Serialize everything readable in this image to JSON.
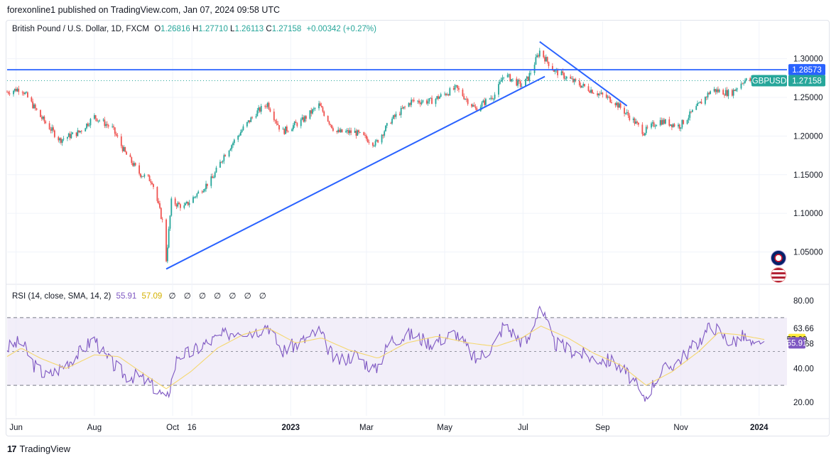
{
  "header": {
    "published_text": "forexonline1 published on TradingView.com, Jan 07, 2024 09:58 UTC"
  },
  "symbol": {
    "title": "British Pound / U.S. Dollar, 1D, FXCM",
    "open_label": "O",
    "open": "1.26816",
    "high_label": "H",
    "high": "1.27710",
    "low_label": "L",
    "low": "1.26113",
    "close_label": "C",
    "close": "1.27158",
    "change": "+0.00342 (+0.27%)"
  },
  "rsi_header": {
    "label": "RSI (14, close, SMA, 14, 2)",
    "rsi_value": "55.91",
    "sma_value": "57.09",
    "extra_icons": "∅ ∅ ∅ ∅ ∅ ∅ ∅"
  },
  "footer": {
    "brand": "TradingView",
    "logo_glyph": "17"
  },
  "colors": {
    "up": "#26a69a",
    "down": "#ef5350",
    "trendline": "#2962ff",
    "rsi": "#7e57c2",
    "rsi_sma": "#f5d76e",
    "rsi_band": "#ede7f6",
    "tag_bg": "#26a69a"
  },
  "chart_data": [
    {
      "type": "candlestick",
      "title": "British Pound / U.S. Dollar, 1D, FXCM",
      "ylim": [
        1.01,
        1.33
      ],
      "y_ticks": [
        "1.30000",
        "1.25000",
        "1.20000",
        "1.15000",
        "1.10000",
        "1.05000"
      ],
      "y_tick_values": [
        1.3,
        1.25,
        1.2,
        1.15,
        1.1,
        1.05
      ],
      "x_ticks": [
        "Jun",
        "Aug",
        "Oct",
        "16",
        "2023",
        "Mar",
        "May",
        "Jul",
        "Sep",
        "Nov",
        "2024"
      ],
      "x_tick_dates": [
        "2022-06-01",
        "2022-08-01",
        "2022-10-01",
        "2022-10-16",
        "2023-01-01",
        "2023-03-01",
        "2023-05-01",
        "2023-07-01",
        "2023-09-01",
        "2023-11-01",
        "2024-01-01"
      ],
      "date_range": [
        "2022-05-25",
        "2024-01-05"
      ],
      "close_path": [
        [
          "2022-05-25",
          1.257
        ],
        [
          "2022-06-05",
          1.262
        ],
        [
          "2022-06-20",
          1.225
        ],
        [
          "2022-07-05",
          1.195
        ],
        [
          "2022-07-20",
          1.205
        ],
        [
          "2022-08-01",
          1.225
        ],
        [
          "2022-08-15",
          1.21
        ],
        [
          "2022-08-25",
          1.178
        ],
        [
          "2022-09-05",
          1.152
        ],
        [
          "2022-09-15",
          1.142
        ],
        [
          "2022-09-23",
          1.09
        ],
        [
          "2022-09-26",
          1.04
        ],
        [
          "2022-09-30",
          1.115
        ],
        [
          "2022-10-10",
          1.108
        ],
        [
          "2022-10-20",
          1.125
        ],
        [
          "2022-11-01",
          1.145
        ],
        [
          "2022-11-10",
          1.175
        ],
        [
          "2022-11-25",
          1.21
        ],
        [
          "2022-12-05",
          1.23
        ],
        [
          "2022-12-14",
          1.242
        ],
        [
          "2022-12-25",
          1.205
        ],
        [
          "2023-01-10",
          1.22
        ],
        [
          "2023-01-23",
          1.24
        ],
        [
          "2023-02-05",
          1.205
        ],
        [
          "2023-02-20",
          1.205
        ],
        [
          "2023-03-08",
          1.19
        ],
        [
          "2023-03-20",
          1.22
        ],
        [
          "2023-04-05",
          1.245
        ],
        [
          "2023-04-20",
          1.245
        ],
        [
          "2023-05-10",
          1.262
        ],
        [
          "2023-05-25",
          1.235
        ],
        [
          "2023-06-10",
          1.255
        ],
        [
          "2023-06-16",
          1.28
        ],
        [
          "2023-06-30",
          1.265
        ],
        [
          "2023-07-05",
          1.275
        ],
        [
          "2023-07-14",
          1.31
        ],
        [
          "2023-07-25",
          1.285
        ],
        [
          "2023-08-10",
          1.27
        ],
        [
          "2023-08-25",
          1.258
        ],
        [
          "2023-09-10",
          1.245
        ],
        [
          "2023-09-25",
          1.22
        ],
        [
          "2023-10-03",
          1.205
        ],
        [
          "2023-10-15",
          1.22
        ],
        [
          "2023-10-31",
          1.213
        ],
        [
          "2023-11-15",
          1.24
        ],
        [
          "2023-11-25",
          1.26
        ],
        [
          "2023-12-10",
          1.255
        ],
        [
          "2023-12-20",
          1.272
        ],
        [
          "2024-01-05",
          1.27158
        ]
      ],
      "horizontal_line": {
        "value": 1.28573,
        "label": "1.28573"
      },
      "dotted_last_line": {
        "value": 1.27158
      },
      "last_price_tag": {
        "symbol": "GBPUSD",
        "value": "1.27158"
      },
      "trendlines": [
        {
          "from": [
            "2022-09-26",
            1.028
          ],
          "to": [
            "2023-07-18",
            1.277
          ]
        },
        {
          "from": [
            "2023-07-14",
            1.322
          ],
          "to": [
            "2023-09-20",
            1.239
          ]
        }
      ]
    },
    {
      "type": "line",
      "title": "RSI (14, close, SMA, 14, 2)",
      "ylim": [
        12,
        88
      ],
      "y_ticks": [
        "80.00",
        "63.66",
        "54.68",
        "40.00",
        "20.00"
      ],
      "y_tick_values": [
        80,
        63.66,
        54.68,
        40,
        20
      ],
      "band": [
        30,
        70
      ],
      "mid": 50,
      "series": [
        {
          "name": "RSI",
          "last": "55.91",
          "last_value": 55.91,
          "path": [
            [
              "2022-05-25",
              52
            ],
            [
              "2022-06-05",
              56
            ],
            [
              "2022-06-15",
              42
            ],
            [
              "2022-06-25",
              35
            ],
            [
              "2022-07-05",
              40
            ],
            [
              "2022-07-20",
              49
            ],
            [
              "2022-08-01",
              58
            ],
            [
              "2022-08-10",
              46
            ],
            [
              "2022-08-25",
              36
            ],
            [
              "2022-09-05",
              35
            ],
            [
              "2022-09-15",
              30
            ],
            [
              "2022-09-23",
              24
            ],
            [
              "2022-09-26",
              20
            ],
            [
              "2022-10-05",
              48
            ],
            [
              "2022-10-15",
              49
            ],
            [
              "2022-10-25",
              54
            ],
            [
              "2022-11-05",
              58
            ],
            [
              "2022-11-20",
              63
            ],
            [
              "2022-12-05",
              62
            ],
            [
              "2022-12-14",
              66
            ],
            [
              "2022-12-25",
              50
            ],
            [
              "2023-01-10",
              56
            ],
            [
              "2023-01-23",
              62
            ],
            [
              "2023-02-05",
              44
            ],
            [
              "2023-02-20",
              48
            ],
            [
              "2023-03-08",
              39
            ],
            [
              "2023-03-20",
              57
            ],
            [
              "2023-04-05",
              60
            ],
            [
              "2023-04-20",
              55
            ],
            [
              "2023-05-10",
              61
            ],
            [
              "2023-05-25",
              45
            ],
            [
              "2023-06-10",
              55
            ],
            [
              "2023-06-16",
              66
            ],
            [
              "2023-06-30",
              56
            ],
            [
              "2023-07-05",
              56
            ],
            [
              "2023-07-14",
              78
            ],
            [
              "2023-07-25",
              55
            ],
            [
              "2023-08-10",
              50
            ],
            [
              "2023-08-25",
              46
            ],
            [
              "2023-09-10",
              44
            ],
            [
              "2023-09-25",
              33
            ],
            [
              "2023-10-03",
              21
            ],
            [
              "2023-10-15",
              37
            ],
            [
              "2023-10-31",
              45
            ],
            [
              "2023-11-15",
              56
            ],
            [
              "2023-11-25",
              66
            ],
            [
              "2023-12-10",
              55
            ],
            [
              "2023-12-20",
              59
            ],
            [
              "2023-12-28",
              52
            ],
            [
              "2024-01-05",
              55.91
            ]
          ]
        },
        {
          "name": "SMA",
          "last": "57.09",
          "last_value": 57.09,
          "path": [
            [
              "2022-05-25",
              47
            ],
            [
              "2022-06-05",
              52
            ],
            [
              "2022-06-20",
              46
            ],
            [
              "2022-07-10",
              40
            ],
            [
              "2022-08-01",
              48
            ],
            [
              "2022-08-20",
              47
            ],
            [
              "2022-09-10",
              36
            ],
            [
              "2022-09-26",
              28
            ],
            [
              "2022-10-15",
              38
            ],
            [
              "2022-11-05",
              52
            ],
            [
              "2022-11-25",
              60
            ],
            [
              "2022-12-14",
              64
            ],
            [
              "2023-01-05",
              55
            ],
            [
              "2023-01-25",
              58
            ],
            [
              "2023-02-15",
              51
            ],
            [
              "2023-03-10",
              46
            ],
            [
              "2023-04-01",
              55
            ],
            [
              "2023-04-25",
              59
            ],
            [
              "2023-05-20",
              55
            ],
            [
              "2023-06-10",
              53
            ],
            [
              "2023-06-30",
              58
            ],
            [
              "2023-07-15",
              65
            ],
            [
              "2023-08-05",
              58
            ],
            [
              "2023-08-25",
              49
            ],
            [
              "2023-09-15",
              42
            ],
            [
              "2023-10-05",
              30
            ],
            [
              "2023-10-25",
              38
            ],
            [
              "2023-11-15",
              50
            ],
            [
              "2023-11-30",
              61
            ],
            [
              "2023-12-15",
              60
            ],
            [
              "2024-01-05",
              57.09
            ]
          ]
        }
      ]
    }
  ]
}
